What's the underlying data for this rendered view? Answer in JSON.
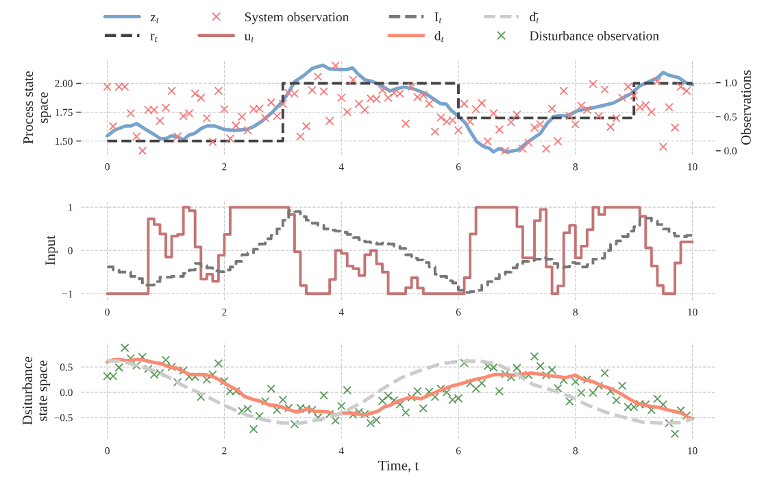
{
  "chart_data": [
    {
      "type": "line",
      "ylabel": "Process state\nspace",
      "y2label": "Observations",
      "xlim": [
        -0.45,
        10.4
      ],
      "xticks": [
        0,
        2,
        4,
        6,
        8,
        10
      ],
      "ylim": [
        1.38,
        2.2
      ],
      "yticks": [
        {
          "value": 1.5,
          "label": "1.50"
        },
        {
          "value": 1.75,
          "label": "1.75"
        },
        {
          "value": 2.0,
          "label": "2.00"
        }
      ],
      "y2lim": [
        -0.06,
        1.33
      ],
      "y2ticks": [
        {
          "value": 0,
          "label": "0.0"
        },
        {
          "value": 0.5,
          "label": "0.5"
        },
        {
          "value": 1.0,
          "label": "1.0"
        }
      ],
      "grid": true,
      "legend": "top",
      "series": [
        {
          "name": "z$_{t}$",
          "color": "#77a3cc",
          "line_style": "solid",
          "x": [
            0,
            0.13,
            0.31,
            0.4,
            0.5,
            0.64,
            0.79,
            0.91,
            1.0,
            1.1,
            1.22,
            1.3,
            1.39,
            1.49,
            1.61,
            1.7,
            1.84,
            2.0,
            2.15,
            2.38,
            2.5,
            2.65,
            2.81,
            2.96,
            3.08,
            3.2,
            3.35,
            3.5,
            3.68,
            3.8,
            3.97,
            4.09,
            4.19,
            4.28,
            4.4,
            4.52,
            4.67,
            4.83,
            4.95,
            5.07,
            5.22,
            5.38,
            5.49,
            5.69,
            5.79,
            5.88,
            6.0,
            6.12,
            6.21,
            6.31,
            6.43,
            6.53,
            6.6,
            6.7,
            6.82,
            7.01,
            7.17,
            7.4,
            7.52,
            7.63,
            7.71,
            7.87,
            8.02,
            8.18,
            8.33,
            8.49,
            8.65,
            8.8,
            8.96,
            9.09,
            9.27,
            9.39,
            9.5,
            9.6,
            9.77,
            9.89,
            10.0
          ],
          "values": [
            1.546,
            1.596,
            1.63,
            1.63,
            1.651,
            1.606,
            1.56,
            1.52,
            1.52,
            1.546,
            1.53,
            1.51,
            1.55,
            1.566,
            1.61,
            1.63,
            1.63,
            1.6,
            1.592,
            1.6,
            1.625,
            1.675,
            1.745,
            1.825,
            1.905,
            2.014,
            2.064,
            2.128,
            2.157,
            2.124,
            2.118,
            2.118,
            2.134,
            2.084,
            2.03,
            2.018,
            1.984,
            1.934,
            1.954,
            1.968,
            1.954,
            1.924,
            1.894,
            1.825,
            1.82,
            1.765,
            1.715,
            1.655,
            1.576,
            1.496,
            1.452,
            1.436,
            1.406,
            1.436,
            1.406,
            1.42,
            1.486,
            1.566,
            1.655,
            1.711,
            1.719,
            1.719,
            1.759,
            1.779,
            1.791,
            1.81,
            1.83,
            1.87,
            1.914,
            1.974,
            2.018,
            2.044,
            2.094,
            2.07,
            2.048,
            2.004,
            1.988
          ]
        },
        {
          "name": "r$_{t}$",
          "type": "step",
          "color": "#444444",
          "line_style": "dashed",
          "x": [
            0,
            3,
            6,
            9,
            10
          ],
          "values": [
            1.5,
            2.0,
            1.7,
            2.0,
            2.0
          ]
        },
        {
          "name": "System observation",
          "type": "scatter",
          "axis": "y2",
          "marker": "cross",
          "color": "#f87878",
          "x": [
            0.0,
            0.1,
            0.2,
            0.3,
            0.4,
            0.5,
            0.6,
            0.7,
            0.8,
            0.9,
            1.0,
            1.1,
            1.2,
            1.3,
            1.4,
            1.5,
            1.6,
            1.7,
            1.8,
            1.9,
            2.0,
            2.1,
            2.2,
            2.3,
            2.4,
            2.5,
            2.6,
            2.7,
            2.8,
            2.9,
            3.0,
            3.1,
            3.2,
            3.3,
            3.4,
            3.5,
            3.6,
            3.7,
            3.8,
            3.9,
            4.0,
            4.1,
            4.2,
            4.3,
            4.4,
            4.5,
            4.6,
            4.7,
            4.8,
            4.9,
            5.0,
            5.1,
            5.2,
            5.3,
            5.4,
            5.5,
            5.6,
            5.7,
            5.8,
            5.9,
            6.0,
            6.1,
            6.2,
            6.3,
            6.4,
            6.5,
            6.6,
            6.7,
            6.8,
            6.9,
            7.0,
            7.1,
            7.2,
            7.3,
            7.4,
            7.5,
            7.6,
            7.7,
            7.8,
            7.9,
            8.0,
            8.1,
            8.2,
            8.3,
            8.4,
            8.5,
            8.6,
            8.7,
            8.8,
            8.9,
            9.0,
            9.1,
            9.2,
            9.3,
            9.4,
            9.5,
            9.6,
            9.7,
            9.8,
            9.9
          ],
          "values": [
            0.94,
            0.36,
            0.94,
            0.94,
            0.55,
            0.21,
            0.0,
            0.6,
            0.6,
            0.44,
            0.63,
            0.88,
            0.21,
            0.51,
            0.55,
            0.84,
            0.78,
            0.48,
            0.13,
            0.88,
            0.61,
            0.18,
            0.37,
            0.5,
            0.3,
            0.61,
            0.62,
            0.48,
            0.71,
            0.51,
            0.69,
            0.85,
            0.84,
            0.21,
            0.36,
            0.89,
            1.09,
            0.87,
            0.44,
            1.25,
            0.78,
            0.57,
            1.04,
            0.69,
            0.6,
            0.77,
            0.76,
            0.89,
            0.78,
            0.85,
            0.84,
            0.4,
            0.94,
            0.79,
            0.82,
            0.69,
            0.28,
            0.49,
            0.43,
            0.45,
            0.3,
            0.69,
            0.43,
            0.61,
            0.7,
            0.14,
            0.55,
            0.31,
            0.0,
            0.42,
            0.53,
            0.03,
            0.12,
            0.34,
            0.39,
            0.03,
            0.62,
            0.14,
            0.88,
            0.51,
            0.39,
            0.66,
            0.6,
            0.98,
            0.51,
            0.9,
            0.35,
            0.48,
            0.78,
            0.94,
            0.81,
            0.64,
            0.67,
            0.57,
            1.02,
            0.06,
            0.64,
            0.34,
            0.94,
            0.88
          ]
        }
      ]
    },
    {
      "type": "step",
      "ylabel": "Input",
      "xlim": [
        -0.45,
        10.4
      ],
      "xticks": [
        0,
        2,
        4,
        6,
        8,
        10
      ],
      "ylim": [
        -1.15,
        1.15
      ],
      "yticks": [
        {
          "value": -1,
          "label": "−1"
        },
        0,
        1
      ],
      "grid": true,
      "legend": "top",
      "series": [
        {
          "name": "u$_{t}$",
          "color": "#c47474",
          "line_style": "solid",
          "x": [
            0,
            0.7,
            0.8,
            0.9,
            1.0,
            1.1,
            1.2,
            1.3,
            1.4,
            1.5,
            1.6,
            1.7,
            1.8,
            1.9,
            2.0,
            2.1,
            3.1,
            3.2,
            3.3,
            3.4,
            3.8,
            3.9,
            4.0,
            4.1,
            4.2,
            4.3,
            4.4,
            4.5,
            4.6,
            4.7,
            4.8,
            5.1,
            5.2,
            5.3,
            5.4,
            6.1,
            6.2,
            6.3,
            7.0,
            7.1,
            7.3,
            7.4,
            7.5,
            7.6,
            7.7,
            7.8,
            7.9,
            8.0,
            8.1,
            8.2,
            8.3,
            8.4,
            8.5,
            9.1,
            9.2,
            9.3,
            9.4,
            9.5,
            9.7,
            9.8,
            10.0
          ],
          "values": [
            -1,
            0.73,
            0.6,
            0.38,
            -0.15,
            0.33,
            0.37,
            1.0,
            0.92,
            0.08,
            -0.66,
            -0.55,
            -0.71,
            -0.11,
            0.37,
            1.0,
            0.83,
            -0.03,
            -0.81,
            -1,
            -0.67,
            0.0,
            -0.07,
            -0.36,
            -0.42,
            -0.58,
            -0.1,
            0.0,
            -0.31,
            -0.5,
            -1,
            -0.86,
            -0.63,
            -0.87,
            -1,
            -0.63,
            0.38,
            1.0,
            0.55,
            -0.17,
            0.69,
            0.95,
            -0.38,
            -1,
            -0.82,
            0.41,
            0.58,
            -0.17,
            0.1,
            0.48,
            1.0,
            0.83,
            1.0,
            0.79,
            0.06,
            -0.36,
            -0.81,
            -1,
            -0.29,
            0.2,
            0.2
          ]
        },
        {
          "name": "I$_{t}$",
          "color": "#777777",
          "line_style": "dashed",
          "x": [
            0.0,
            0.1,
            0.2,
            0.3,
            0.4,
            0.5,
            0.6,
            0.7,
            0.8,
            0.9,
            1.0,
            1.1,
            1.2,
            1.3,
            1.4,
            1.5,
            1.6,
            1.7,
            1.8,
            1.9,
            2.0,
            2.1,
            2.2,
            2.3,
            2.4,
            2.5,
            2.6,
            2.7,
            2.8,
            2.9,
            3.0,
            3.1,
            3.2,
            3.3,
            3.4,
            3.5,
            3.6,
            3.7,
            3.8,
            3.9,
            4.0,
            4.1,
            4.2,
            4.3,
            4.4,
            4.5,
            4.6,
            4.7,
            4.8,
            4.9,
            5.0,
            5.1,
            5.2,
            5.3,
            5.4,
            5.5,
            5.6,
            5.7,
            5.8,
            5.9,
            6.0,
            6.1,
            6.2,
            6.3,
            6.4,
            6.5,
            6.6,
            6.7,
            6.8,
            6.9,
            7.0,
            7.1,
            7.2,
            7.3,
            7.4,
            7.5,
            7.6,
            7.7,
            7.8,
            7.9,
            8.0,
            8.1,
            8.2,
            8.3,
            8.4,
            8.5,
            8.6,
            8.7,
            8.8,
            8.9,
            9.0,
            9.1,
            9.2,
            9.3,
            9.4,
            9.5,
            9.6,
            9.7,
            9.8,
            9.9,
            10.0
          ],
          "values": [
            -0.38,
            -0.45,
            -0.5,
            -0.5,
            -0.6,
            -0.65,
            -0.8,
            -0.8,
            -0.72,
            -0.62,
            -0.62,
            -0.6,
            -0.6,
            -0.53,
            -0.45,
            -0.3,
            -0.35,
            -0.4,
            -0.47,
            -0.49,
            -0.45,
            -0.38,
            -0.25,
            -0.1,
            -0.05,
            0.03,
            0.15,
            0.27,
            0.35,
            0.5,
            0.7,
            0.92,
            0.9,
            0.78,
            0.7,
            0.63,
            0.58,
            0.5,
            0.47,
            0.45,
            0.42,
            0.37,
            0.3,
            0.25,
            0.2,
            0.18,
            0.15,
            0.17,
            0.15,
            0.1,
            0.05,
            -0.1,
            -0.18,
            -0.22,
            -0.28,
            -0.38,
            -0.55,
            -0.6,
            -0.7,
            -0.75,
            -0.92,
            -0.97,
            -0.95,
            -0.92,
            -0.8,
            -0.72,
            -0.65,
            -0.55,
            -0.5,
            -0.4,
            -0.33,
            -0.25,
            -0.23,
            -0.2,
            -0.17,
            -0.2,
            -0.3,
            -0.4,
            -0.38,
            -0.28,
            -0.3,
            -0.38,
            -0.33,
            -0.2,
            -0.18,
            0.0,
            0.15,
            0.22,
            0.32,
            0.45,
            0.55,
            0.75,
            0.75,
            0.68,
            0.6,
            0.5,
            0.4,
            0.33,
            0.32,
            0.35,
            0.35
          ]
        }
      ]
    },
    {
      "type": "line",
      "ylabel": "Dsiturbance\nstate space",
      "xlabel": "Time, t",
      "xlim": [
        -0.45,
        10.4
      ],
      "xticks": [
        0,
        2,
        4,
        6,
        8,
        10
      ],
      "ylim": [
        -0.92,
        0.98
      ],
      "yticks": [
        {
          "value": -0.5,
          "label": "−0.5"
        },
        {
          "value": 0,
          "label": "0.0"
        },
        0.5
      ],
      "grid": true,
      "legend": "top",
      "series": [
        {
          "name": "d$_{t}$",
          "color": "#fa8a73",
          "line_style": "solid",
          "x": [
            0,
            0.09,
            0.19,
            0.31,
            0.4,
            0.52,
            0.64,
            0.75,
            0.91,
            1.06,
            1.18,
            1.3,
            1.41,
            1.53,
            1.65,
            1.76,
            1.88,
            2.0,
            2.11,
            2.23,
            2.34,
            2.46,
            2.62,
            2.77,
            2.89,
            3.0,
            3.12,
            3.24,
            3.31,
            3.43,
            3.55,
            3.66,
            3.78,
            3.9,
            4.01,
            4.17,
            4.28,
            4.4,
            4.52,
            4.63,
            4.73,
            4.83,
            4.94,
            5.03,
            5.18,
            5.36,
            5.49,
            5.69,
            5.88,
            6.08,
            6.27,
            6.47,
            6.62,
            6.78,
            6.93,
            7.09,
            7.25,
            7.4,
            7.56,
            7.71,
            7.83,
            8.0,
            8.14,
            8.3,
            8.45,
            8.61,
            8.76,
            8.92,
            9.04,
            9.19,
            9.42,
            9.58,
            9.74,
            9.81,
            9.93,
            10.0
          ],
          "values": [
            0.6,
            0.64,
            0.65,
            0.63,
            0.63,
            0.65,
            0.63,
            0.6,
            0.57,
            0.5,
            0.48,
            0.41,
            0.35,
            0.35,
            0.35,
            0.33,
            0.27,
            0.18,
            0.11,
            0.04,
            -0.08,
            -0.13,
            -0.18,
            -0.25,
            -0.26,
            -0.3,
            -0.35,
            -0.39,
            -0.37,
            -0.33,
            -0.38,
            -0.38,
            -0.39,
            -0.45,
            -0.41,
            -0.41,
            -0.43,
            -0.45,
            -0.41,
            -0.37,
            -0.29,
            -0.26,
            -0.19,
            -0.15,
            -0.1,
            -0.13,
            -0.06,
            0.04,
            0.12,
            0.18,
            0.25,
            0.3,
            0.35,
            0.35,
            0.34,
            0.36,
            0.38,
            0.36,
            0.33,
            0.31,
            0.29,
            0.34,
            0.25,
            0.21,
            0.13,
            0.07,
            -0.02,
            -0.13,
            -0.21,
            -0.26,
            -0.3,
            -0.35,
            -0.39,
            -0.41,
            -0.5,
            -0.52
          ]
        },
        {
          "name": "d̄$_{t}$",
          "color": "#cccccc",
          "line_style": "dashed",
          "x": [
            0,
            0.21,
            0.52,
            0.91,
            1.3,
            1.61,
            2.0,
            2.38,
            2.69,
            3.0,
            3.31,
            3.62,
            4.01,
            4.4,
            4.72,
            5.03,
            5.34,
            5.69,
            6.0,
            6.35,
            6.66,
            6.97,
            7.28,
            7.6,
            7.91,
            8.22,
            8.53,
            8.84,
            9.15,
            9.46,
            9.77,
            10.0
          ],
          "values": [
            0.62,
            0.62,
            0.53,
            0.38,
            0.13,
            -0.03,
            -0.26,
            -0.45,
            -0.55,
            -0.61,
            -0.61,
            -0.54,
            -0.41,
            -0.17,
            0.08,
            0.29,
            0.43,
            0.56,
            0.61,
            0.62,
            0.56,
            0.38,
            0.15,
            0.04,
            -0.08,
            -0.26,
            -0.4,
            -0.5,
            -0.59,
            -0.61,
            -0.6,
            -0.53
          ]
        },
        {
          "name": "Disturbance observation",
          "type": "scatter",
          "marker": "cross",
          "color": "#5a9a5a",
          "x": [
            0.0,
            0.1,
            0.2,
            0.3,
            0.4,
            0.5,
            0.6,
            0.7,
            0.8,
            0.9,
            1.0,
            1.1,
            1.2,
            1.3,
            1.4,
            1.5,
            1.6,
            1.7,
            1.8,
            1.9,
            2.0,
            2.1,
            2.2,
            2.3,
            2.4,
            2.5,
            2.6,
            2.7,
            2.8,
            2.9,
            3.0,
            3.1,
            3.2,
            3.3,
            3.4,
            3.5,
            3.6,
            3.7,
            3.8,
            3.9,
            4.0,
            4.1,
            4.2,
            4.3,
            4.4,
            4.5,
            4.6,
            4.7,
            4.8,
            4.9,
            5.0,
            5.1,
            5.2,
            5.3,
            5.4,
            5.5,
            5.6,
            5.7,
            5.8,
            5.9,
            6.0,
            6.1,
            6.2,
            6.3,
            6.4,
            6.5,
            6.6,
            6.7,
            6.8,
            6.9,
            7.0,
            7.1,
            7.2,
            7.3,
            7.4,
            7.5,
            7.6,
            7.7,
            7.8,
            7.9,
            8.0,
            8.1,
            8.2,
            8.3,
            8.4,
            8.5,
            8.6,
            8.7,
            8.8,
            8.9,
            9.0,
            9.1,
            9.2,
            9.3,
            9.4,
            9.5,
            9.6,
            9.7,
            9.8,
            9.9
          ],
          "values": [
            0.32,
            0.32,
            0.49,
            0.88,
            0.67,
            0.53,
            0.7,
            0.46,
            0.35,
            0.38,
            0.64,
            0.5,
            0.2,
            0.43,
            0.31,
            0.31,
            -0.09,
            0.25,
            0.35,
            0.57,
            0.22,
            0.02,
            0.02,
            -0.37,
            -0.33,
            -0.73,
            -0.47,
            -0.18,
            0.07,
            -0.35,
            -0.15,
            -0.31,
            -0.63,
            -0.31,
            -0.33,
            -0.35,
            -0.5,
            -0.06,
            -0.43,
            -0.56,
            -0.27,
            0.04,
            -0.44,
            -0.39,
            -0.43,
            -0.61,
            -0.55,
            -0.17,
            -0.07,
            -0.16,
            -0.24,
            -0.4,
            -0.1,
            0.02,
            -0.32,
            0.01,
            -0.09,
            0.07,
            0.0,
            -0.15,
            -0.12,
            0.58,
            0.18,
            0.07,
            0.18,
            0.52,
            0.49,
            0.02,
            0.36,
            0.3,
            0.48,
            0.34,
            0.34,
            0.71,
            0.52,
            0.34,
            0.44,
            0.08,
            0.24,
            -0.18,
            0.21,
            -0.01,
            0.25,
            -0.01,
            0.13,
            0.38,
            0.02,
            -0.16,
            0.13,
            -0.29,
            -0.29,
            -0.23,
            -0.24,
            -0.35,
            -0.13,
            -0.24,
            -0.61,
            -0.82,
            -0.36,
            -0.46
          ]
        }
      ]
    }
  ]
}
